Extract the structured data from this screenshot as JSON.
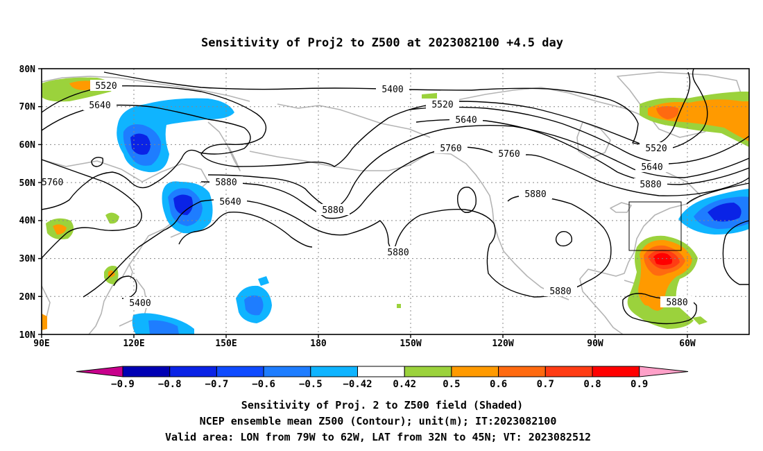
{
  "title": "Sensitivity of Proj2 to Z500 at 2023082100 +4.5 day",
  "map": {
    "lat_ticks": [
      "80N",
      "70N",
      "60N",
      "50N",
      "40N",
      "30N",
      "20N",
      "10N"
    ],
    "lon_ticks": [
      "90E",
      "120E",
      "150E",
      "180",
      "150W",
      "120W",
      "90W",
      "60W"
    ],
    "contour_labels": [
      "5520",
      "5640",
      "5400",
      "5520",
      "5640",
      "5760",
      "5760",
      "5760",
      "5880",
      "5640",
      "5880",
      "5880",
      "5400",
      "5520",
      "5640",
      "5880",
      "5880",
      "5880"
    ]
  },
  "colorbar": {
    "labels": [
      "-0.9",
      "-0.8",
      "-0.7",
      "-0.6",
      "-0.5",
      "-0.42",
      "0.42",
      "0.5",
      "0.6",
      "0.7",
      "0.8",
      "0.9"
    ],
    "colors": [
      "#0000b4",
      "#0a23e6",
      "#0f4bff",
      "#1e7dff",
      "#0fb4ff",
      "#ffffff",
      "#9bd23c",
      "#ff9a00",
      "#ff6a10",
      "#ff3c14",
      "#ff0000"
    ],
    "low_color": "#c8008c",
    "high_color": "#ffa0c8"
  },
  "caption": {
    "line1": "Sensitivity of Proj. 2 to Z500 field (Shaded)",
    "line2": "NCEP ensemble mean Z500 (Contour); unit(m); IT:2023082100",
    "line3": "Valid area: LON from 79W to 62W, LAT from 32N to 45N; VT: 2023082512"
  }
}
